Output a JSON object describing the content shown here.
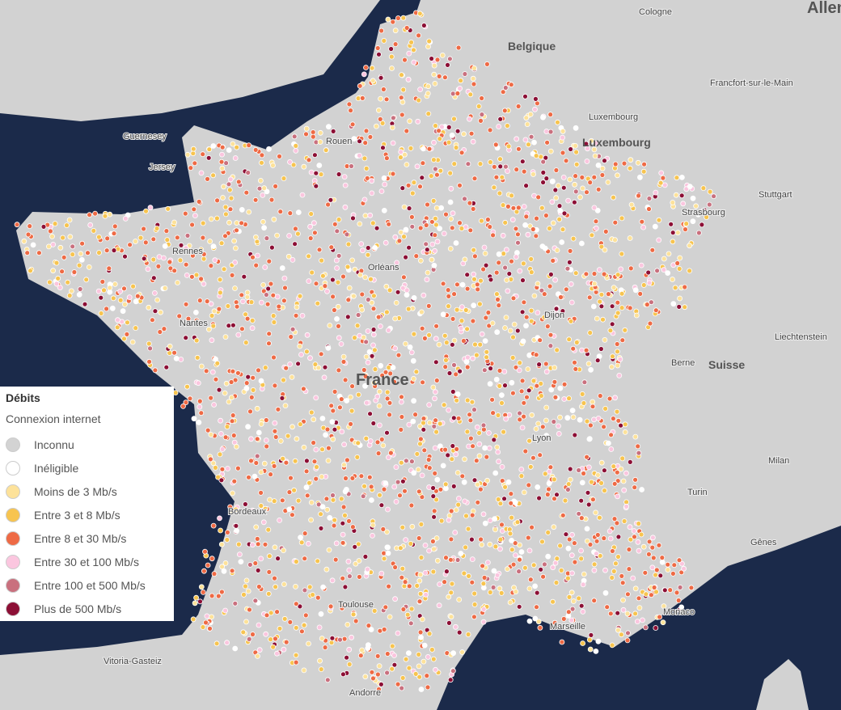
{
  "legend": {
    "title": "Débits",
    "subtitle": "Connexion internet",
    "items": [
      {
        "label": "Inconnu",
        "color": "#d3d3d3"
      },
      {
        "label": "Inéligible",
        "color": "#ffffff"
      },
      {
        "label": "Moins de 3 Mb/s",
        "color": "#fde29a"
      },
      {
        "label": "Entre 3 et 8 Mb/s",
        "color": "#f7c44f"
      },
      {
        "label": "Entre 8 et 30 Mb/s",
        "color": "#ee6a45"
      },
      {
        "label": "Entre 30 et 100 Mb/s",
        "color": "#fbc6df"
      },
      {
        "label": "Entre 100 et 500 Mb/s",
        "color": "#c9707e"
      },
      {
        "label": "Plus de 500 Mb/s",
        "color": "#8c0f35"
      }
    ]
  },
  "places": [
    "Cologne",
    "Allem",
    "Belgique",
    "Francfort-sur-le-Main",
    "Luxembourg",
    "Luxembourg",
    "Stuttgart",
    "Strasbourg",
    "Guernesey",
    "Jersey",
    "Rouen",
    "Rennes",
    "Orléans",
    "Nantes",
    "Dijon",
    "France",
    "Liechtenstein",
    "Berne",
    "Suisse",
    "Lyon",
    "Milan",
    "Turin",
    "Bordeaux",
    "Gênes",
    "Monaco",
    "Toulouse",
    "Marseille",
    "Vitoria-Gasteiz",
    "Andorre"
  ]
}
